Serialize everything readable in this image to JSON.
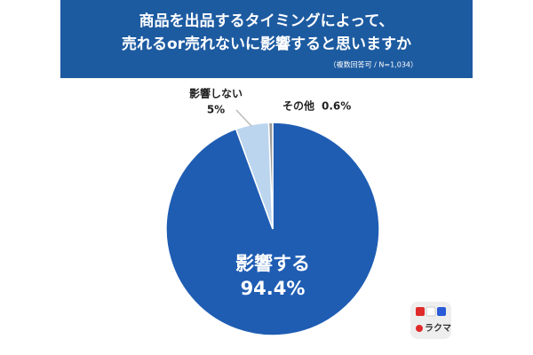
{
  "chart_data": {
    "type": "pie",
    "title_lines": [
      "商品を出品するタイミングによって、",
      "売れるor売れないに影響すると思いますか"
    ],
    "subtitle": "（複数回答可 / N=1,034）",
    "categories": [
      "影響する",
      "影響しない",
      "その他"
    ],
    "values": [
      94.4,
      5,
      0.6
    ],
    "value_labels": [
      "94.4%",
      "5%",
      "0.6%"
    ],
    "colors": [
      "#1f5db3",
      "#bcd5ee",
      "#9a9a9a"
    ],
    "logo": "ラクマ"
  }
}
